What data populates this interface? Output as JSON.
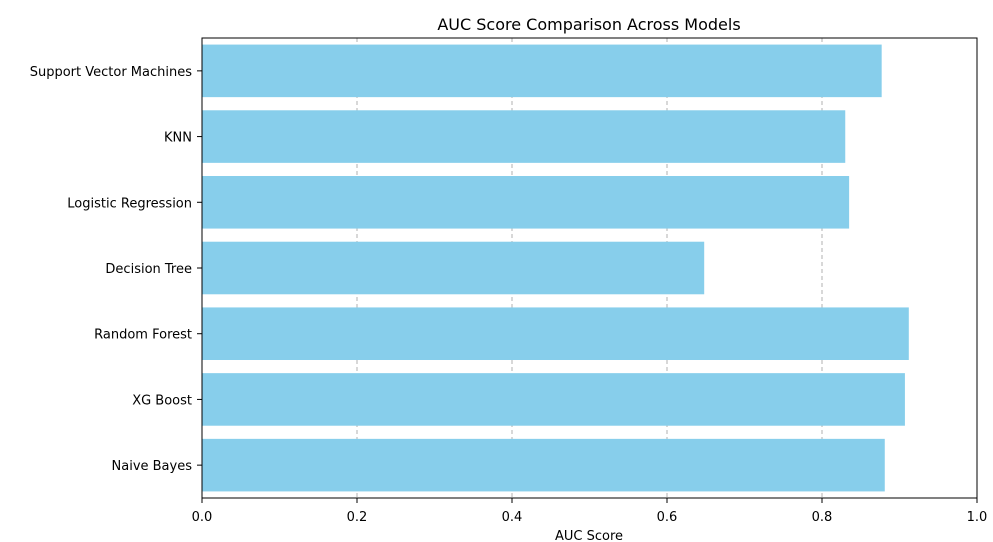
{
  "chart_data": {
    "type": "bar",
    "orientation": "horizontal",
    "title": "AUC Score Comparison Across Models",
    "xlabel": "AUC Score",
    "ylabel": "",
    "xlim": [
      0,
      1
    ],
    "xticks": [
      0.0,
      0.2,
      0.4,
      0.6,
      0.8,
      1.0
    ],
    "xtick_labels": [
      "0.0",
      "0.2",
      "0.4",
      "0.6",
      "0.8",
      "1.0"
    ],
    "grid": "x-axis dashed",
    "bar_color": "#87CEEB",
    "categories": [
      "Support Vector Machines",
      "KNN",
      "Logistic Regression",
      "Decision Tree",
      "Random Forest",
      "XG Boost",
      "Naive Bayes"
    ],
    "values": [
      0.877,
      0.83,
      0.835,
      0.648,
      0.912,
      0.907,
      0.881
    ]
  }
}
